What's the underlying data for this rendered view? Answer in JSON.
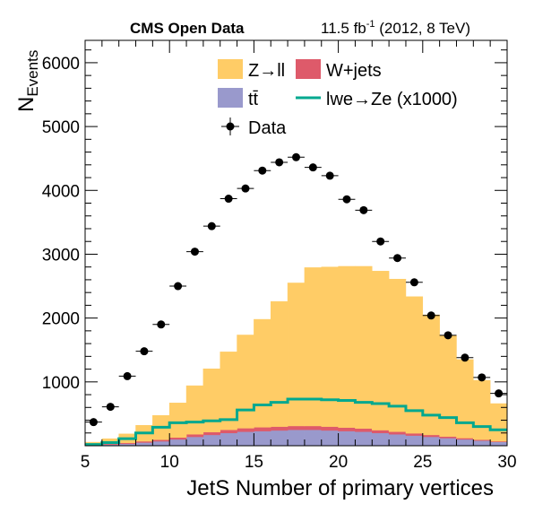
{
  "chart_data": {
    "type": "bar",
    "header": {
      "left": "CMS Open Data",
      "lumi": "11.5",
      "lumi_unit": "fb",
      "lumi_exp": "-1",
      "run": "(2012, 8 TeV)"
    },
    "xlabel": "JetS Number of primary vertices",
    "ylabel_main": "N",
    "ylabel_sub": "Events",
    "xlim": [
      5,
      30
    ],
    "ylim": [
      0,
      6350
    ],
    "xticks": [
      5,
      10,
      15,
      20,
      25,
      30
    ],
    "yticks": [
      1000,
      2000,
      3000,
      4000,
      5000,
      6000
    ],
    "bin_edges": [
      5,
      6,
      7,
      8,
      9,
      10,
      11,
      12,
      13,
      14,
      15,
      16,
      17,
      18,
      19,
      20,
      21,
      22,
      23,
      24,
      25,
      26,
      27,
      28,
      29,
      30
    ],
    "stack": [
      {
        "name": "tt̄",
        "color": "#9999cc",
        "values": [
          10,
          20,
          30,
          50,
          70,
          100,
          140,
          170,
          200,
          220,
          230,
          240,
          250,
          250,
          240,
          230,
          220,
          200,
          180,
          160,
          140,
          120,
          100,
          80,
          60
        ]
      },
      {
        "name": "W+jets",
        "color": "#de5a6a",
        "values": [
          5,
          10,
          15,
          20,
          25,
          30,
          40,
          45,
          50,
          55,
          60,
          60,
          60,
          60,
          60,
          55,
          50,
          45,
          40,
          35,
          30,
          25,
          20,
          15,
          10
        ]
      },
      {
        "name": "Z→ll",
        "color": "#ffcc66",
        "values": [
          40,
          80,
          140,
          250,
          380,
          540,
          760,
          990,
          1220,
          1460,
          1690,
          1960,
          2240,
          2480,
          2500,
          2525,
          2540,
          2490,
          2390,
          2140,
          1880,
          1585,
          1230,
          930,
          590
        ]
      }
    ],
    "signal": {
      "name": "lwe→Ze (x1000)",
      "color": "#00a88f",
      "values": [
        20,
        50,
        110,
        200,
        290,
        360,
        370,
        390,
        410,
        560,
        640,
        680,
        730,
        730,
        720,
        710,
        680,
        660,
        620,
        550,
        480,
        440,
        360,
        300,
        250
      ]
    },
    "data": {
      "name": "Data",
      "x": [
        5.5,
        6.5,
        7.5,
        8.5,
        9.5,
        10.5,
        11.5,
        12.5,
        13.5,
        14.5,
        15.5,
        16.5,
        17.5,
        18.5,
        19.5,
        20.5,
        21.5,
        22.5,
        23.5,
        24.5,
        25.5,
        26.5,
        27.5,
        28.5,
        29.5
      ],
      "y": [
        370,
        610,
        1090,
        1480,
        1900,
        2500,
        3040,
        3440,
        3870,
        4030,
        4310,
        4440,
        4520,
        4360,
        4230,
        3860,
        3690,
        3200,
        2940,
        2560,
        2040,
        1730,
        1380,
        1070,
        820
      ]
    },
    "legend": [
      {
        "label": "Z→ll",
        "kind": "box",
        "color": "#ffcc66"
      },
      {
        "label": "W+jets",
        "kind": "box",
        "color": "#de5a6a"
      },
      {
        "label": "tt̄",
        "kind": "box",
        "color": "#9999cc"
      },
      {
        "label": "lwe→Ze (x1000)",
        "kind": "line",
        "color": "#00a88f"
      },
      {
        "label": "Data",
        "kind": "marker",
        "color": "#000000"
      }
    ]
  }
}
